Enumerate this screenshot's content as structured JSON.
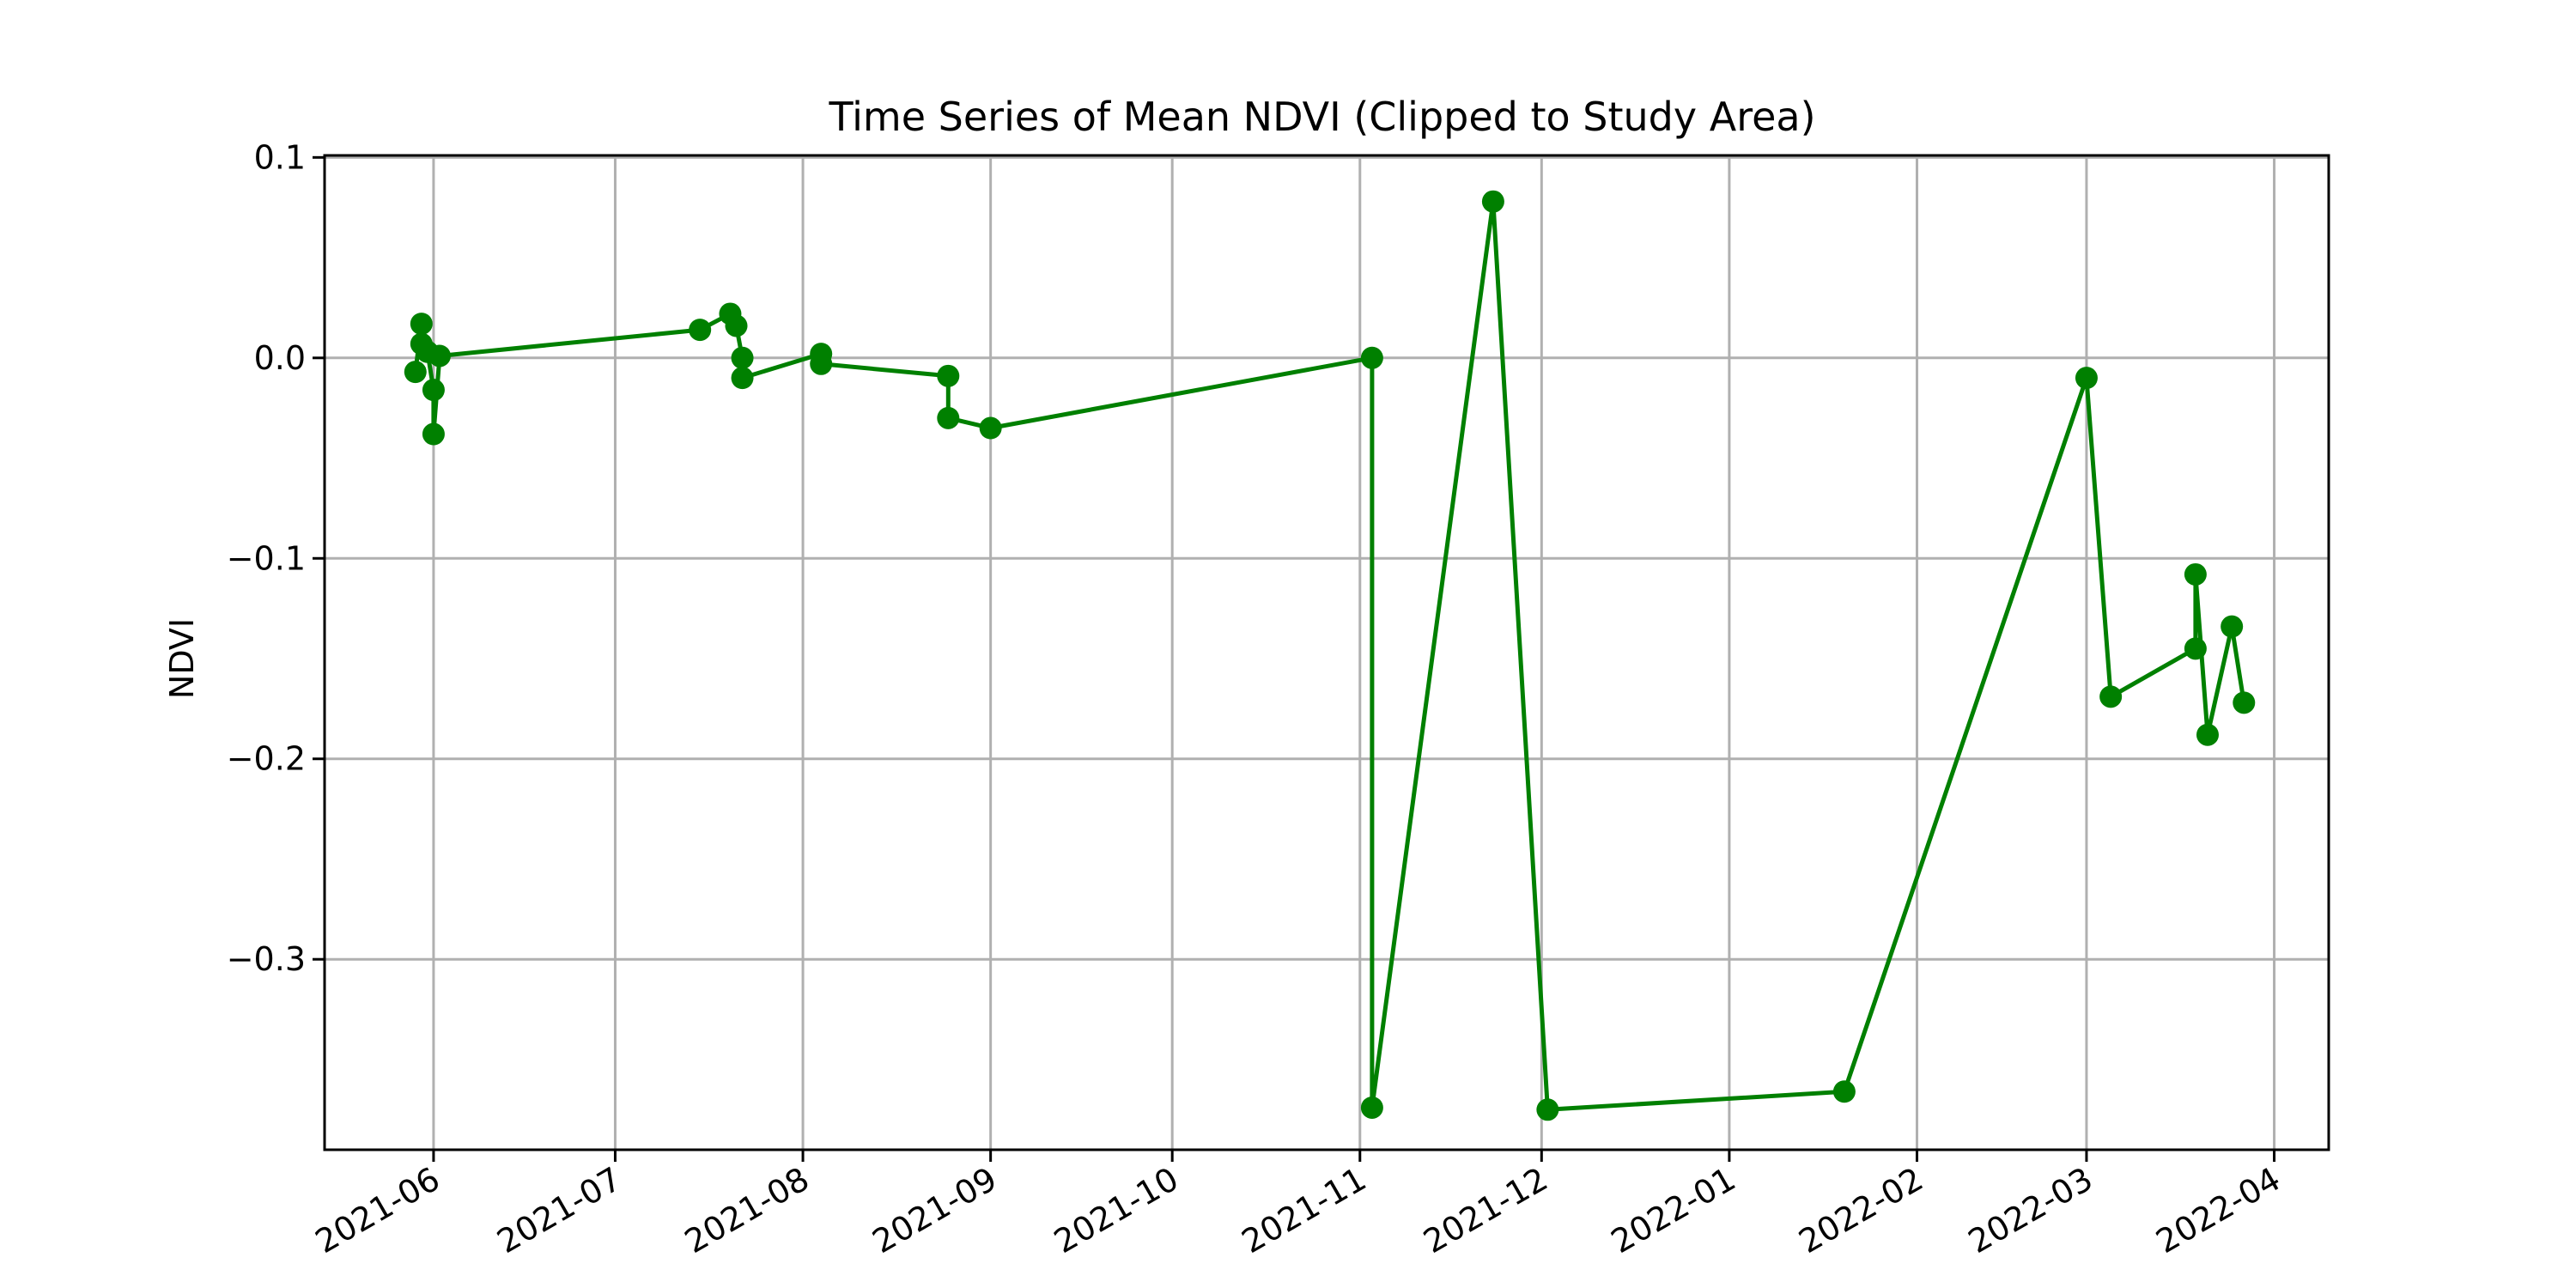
{
  "chart_data": {
    "type": "line",
    "title": "Time Series of Mean NDVI (Clipped to Study Area)",
    "xlabel": "",
    "ylabel": "NDVI",
    "x_scale": "date",
    "xlim": [
      "2021-05-14",
      "2022-04-10"
    ],
    "ylim": [
      -0.395,
      0.101
    ],
    "grid": true,
    "x_ticks": [
      "2021-06",
      "2021-07",
      "2021-08",
      "2021-09",
      "2021-10",
      "2021-11",
      "2021-12",
      "2022-01",
      "2022-02",
      "2022-03",
      "2022-04"
    ],
    "x_tick_dates": [
      "2021-06-01",
      "2021-07-01",
      "2021-08-01",
      "2021-09-01",
      "2021-10-01",
      "2021-11-01",
      "2021-12-01",
      "2022-01-01",
      "2022-02-01",
      "2022-03-01",
      "2022-04-01"
    ],
    "y_ticks": [
      0.1,
      0.0,
      -0.1,
      -0.2,
      -0.3
    ],
    "y_tick_labels": [
      "0.1",
      "0.0",
      "−0.1",
      "−0.2",
      "−0.3"
    ],
    "series": [
      {
        "color": "#008000",
        "x": [
          "2021-05-29",
          "2021-05-30",
          "2021-05-30",
          "2021-05-31",
          "2021-06-01",
          "2021-06-01",
          "2021-06-02",
          "2021-07-15",
          "2021-07-20",
          "2021-07-21",
          "2021-07-22",
          "2021-07-22",
          "2021-08-04",
          "2021-08-04",
          "2021-08-25",
          "2021-08-25",
          "2021-09-01",
          "2021-11-03",
          "2021-11-03",
          "2021-11-23",
          "2021-12-02",
          "2022-01-20",
          "2022-03-01",
          "2022-03-05",
          "2022-03-19",
          "2022-03-19",
          "2022-03-21",
          "2022-03-25",
          "2022-03-27"
        ],
        "y": [
          -0.007,
          0.017,
          0.007,
          0.003,
          -0.016,
          -0.038,
          0.001,
          0.014,
          0.022,
          0.016,
          0.0,
          -0.01,
          0.002,
          -0.003,
          -0.009,
          -0.03,
          -0.035,
          0.0,
          -0.374,
          0.078,
          -0.375,
          -0.366,
          -0.01,
          -0.169,
          -0.145,
          -0.108,
          -0.188,
          -0.134,
          -0.172
        ]
      }
    ]
  }
}
